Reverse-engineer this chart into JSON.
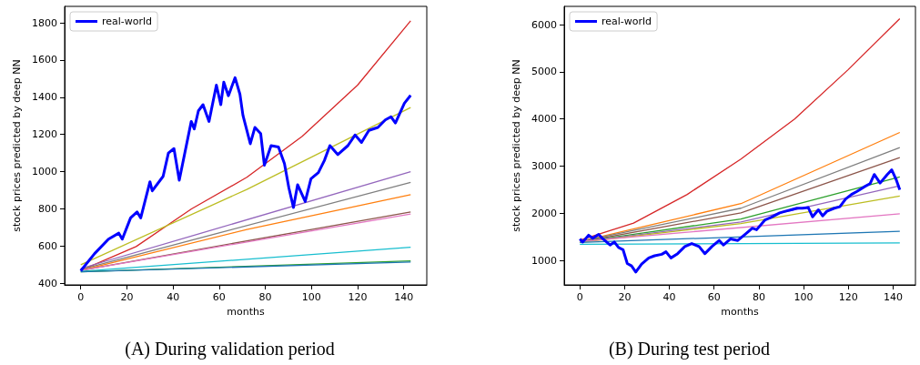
{
  "chart_data": [
    {
      "type": "line",
      "xlabel": "months",
      "ylabel": "stock prices predicted by deep NN",
      "annotations": [
        "(A) During validation period"
      ],
      "xlim": [
        -7,
        150
      ],
      "ylim": [
        392,
        1888
      ],
      "xticks": [
        0,
        20,
        40,
        60,
        80,
        100,
        120,
        140
      ],
      "yticks": [
        400,
        600,
        800,
        1000,
        1200,
        1400,
        1600,
        1800
      ],
      "grid": false,
      "legend": "top left",
      "series": [
        {
          "color": "#d62728",
          "x": [
            0,
            24,
            48,
            72,
            96,
            120,
            143
          ],
          "values": [
            470,
            598,
            800,
            970,
            1190,
            1465,
            1810
          ]
        },
        {
          "color": "#bcbd22",
          "x": [
            0,
            72,
            143
          ],
          "values": [
            500,
            905,
            1345
          ]
        },
        {
          "color": "#9467bd",
          "x": [
            0,
            143
          ],
          "values": [
            480,
            1000
          ]
        },
        {
          "color": "#7f7f7f",
          "x": [
            0,
            143
          ],
          "values": [
            475,
            943
          ]
        },
        {
          "color": "#ff7f0e",
          "x": [
            0,
            72,
            143
          ],
          "values": [
            470,
            690,
            877
          ]
        },
        {
          "color": "#8c564b",
          "x": [
            0,
            143
          ],
          "values": [
            470,
            784
          ]
        },
        {
          "color": "#e377c2",
          "x": [
            0,
            143
          ],
          "values": [
            470,
            773
          ]
        },
        {
          "color": "#17becf",
          "x": [
            0,
            143
          ],
          "values": [
            465,
            594
          ]
        },
        {
          "color": "#2ca02c",
          "x": [
            0,
            143
          ],
          "values": [
            462,
            521
          ]
        },
        {
          "color": "#1f77b4",
          "x": [
            0,
            143
          ],
          "values": [
            462,
            515
          ]
        },
        {
          "name": "real-world",
          "color": "#0000ff",
          "x": [
            0,
            6,
            12,
            16.5,
            18,
            21.6,
            24.4,
            26,
            30,
            31,
            35.7,
            38,
            40.4,
            42.7,
            47.9,
            49.2,
            51,
            53,
            55.6,
            58.8,
            60.7,
            62,
            64,
            66.9,
            69,
            70.3,
            73.5,
            75.5,
            78,
            79.6,
            82.5,
            85.7,
            88.3,
            90.2,
            92.2,
            94,
            97.3,
            99.8,
            103,
            105.6,
            108,
            111.4,
            115.8,
            118.9,
            121.7,
            124.9,
            128.8,
            132,
            134.5,
            136.4,
            140.3,
            143
          ],
          "values": [
            468,
            560,
            638,
            670,
            638,
            752,
            784,
            752,
            946,
            897,
            975,
            1100,
            1124,
            954,
            1270,
            1230,
            1327,
            1360,
            1270,
            1465,
            1360,
            1481,
            1408,
            1505,
            1416,
            1303,
            1150,
            1238,
            1205,
            1035,
            1140,
            1133,
            1043,
            914,
            808,
            930,
            840,
            962,
            995,
            1060,
            1140,
            1092,
            1140,
            1197,
            1157,
            1222,
            1238,
            1278,
            1295,
            1262,
            1368,
            1410
          ]
        }
      ]
    },
    {
      "type": "line",
      "xlabel": "months",
      "ylabel": "stock prices predicted by deep NN",
      "annotations": [
        "(B) During test period"
      ],
      "xlim": [
        -7,
        150
      ],
      "ylim": [
        480,
        6390
      ],
      "xticks": [
        0,
        20,
        40,
        60,
        80,
        100,
        120,
        140
      ],
      "yticks": [
        1000,
        2000,
        3000,
        4000,
        5000,
        6000
      ],
      "grid": false,
      "legend": "top left",
      "series": [
        {
          "color": "#d62728",
          "x": [
            0,
            24,
            48,
            72,
            96,
            120,
            143
          ],
          "values": [
            1430,
            1790,
            2400,
            3150,
            4000,
            5050,
            6130
          ]
        },
        {
          "color": "#ff7f0e",
          "x": [
            0,
            72,
            143
          ],
          "values": [
            1400,
            2204,
            3715
          ]
        },
        {
          "color": "#7f7f7f",
          "x": [
            0,
            72,
            143
          ],
          "values": [
            1400,
            2107,
            3396
          ]
        },
        {
          "color": "#8c564b",
          "x": [
            0,
            72,
            143
          ],
          "values": [
            1390,
            2009,
            3181
          ]
        },
        {
          "color": "#2ca02c",
          "x": [
            0,
            72,
            143
          ],
          "values": [
            1390,
            1879,
            2771
          ]
        },
        {
          "color": "#9467bd",
          "x": [
            0,
            72,
            143
          ],
          "values": [
            1390,
            1814,
            2582
          ]
        },
        {
          "color": "#bcbd22",
          "x": [
            0,
            72,
            143
          ],
          "values": [
            1380,
            1781,
            2367
          ]
        },
        {
          "color": "#e377c2",
          "x": [
            0,
            143
          ],
          "values": [
            1400,
            1990
          ]
        },
        {
          "color": "#1f77b4",
          "x": [
            0,
            143
          ],
          "values": [
            1380,
            1618
          ]
        },
        {
          "color": "#17becf",
          "x": [
            0,
            143
          ],
          "values": [
            1340,
            1371
          ]
        },
        {
          "name": "real-world",
          "color": "#0000ff",
          "x": [
            0,
            1.3,
            3.9,
            5.8,
            8.4,
            10.3,
            13.5,
            15.4,
            17.3,
            19.3,
            21.2,
            23.1,
            25,
            27.6,
            30.8,
            33.4,
            36.6,
            38.5,
            40.7,
            43.7,
            46.9,
            50,
            53.3,
            55.9,
            59,
            62.3,
            64.2,
            67.4,
            70.6,
            73.9,
            77.1,
            79,
            82.8,
            85.4,
            89.3,
            91.8,
            94.4,
            97,
            99.5,
            102.1,
            104,
            106.6,
            108.5,
            110.4,
            113.7,
            116.2,
            118.8,
            121.4,
            123.9,
            127.2,
            129.7,
            131.6,
            134.2,
            137.4,
            139.4,
            141.3,
            143
          ],
          "values": [
            1456,
            1390,
            1534,
            1469,
            1553,
            1456,
            1326,
            1390,
            1273,
            1228,
            935,
            883,
            753,
            922,
            1052,
            1098,
            1130,
            1182,
            1052,
            1143,
            1293,
            1358,
            1293,
            1143,
            1293,
            1423,
            1326,
            1456,
            1423,
            1553,
            1684,
            1651,
            1859,
            1911,
            2009,
            2042,
            2074,
            2107,
            2107,
            2120,
            1924,
            2074,
            1944,
            2042,
            2107,
            2139,
            2302,
            2400,
            2465,
            2563,
            2628,
            2823,
            2641,
            2823,
            2921,
            2725,
            2497
          ]
        }
      ]
    }
  ]
}
